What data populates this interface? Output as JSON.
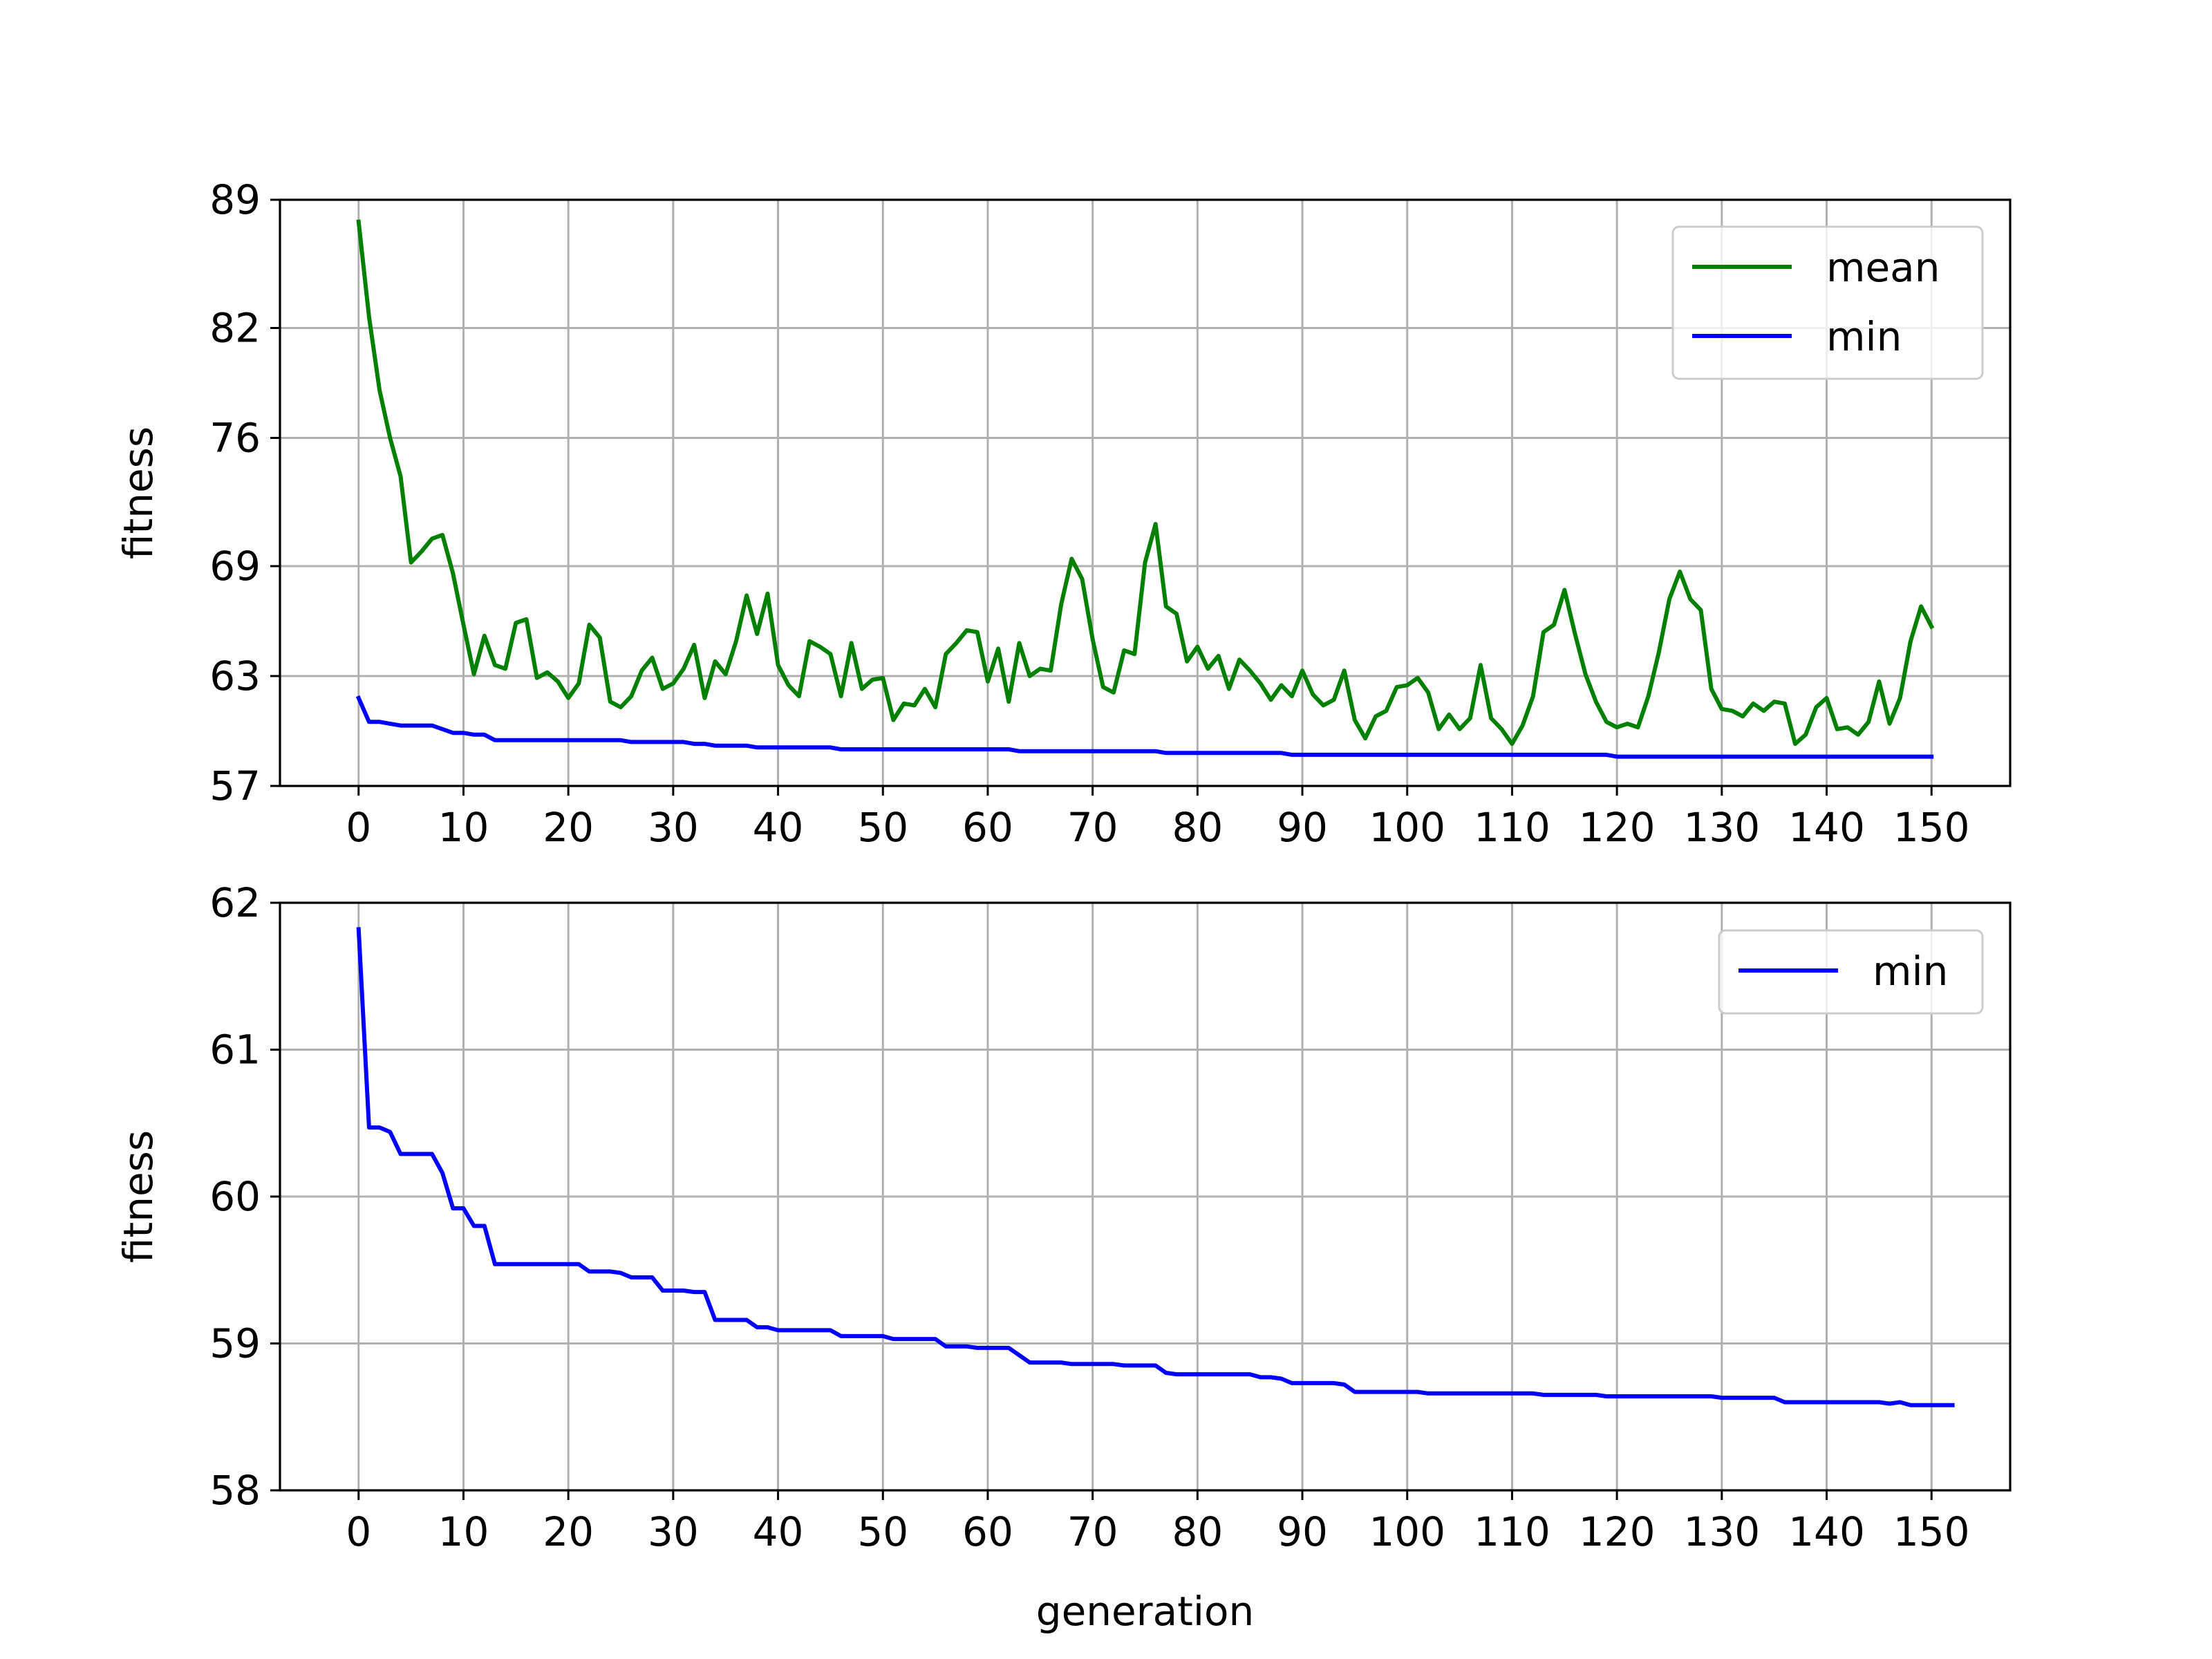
{
  "chart_data": [
    {
      "type": "line",
      "xlabel": "",
      "ylabel": "fitness",
      "xlim": [
        -7.5,
        157.5
      ],
      "ylim": [
        57,
        89
      ],
      "xticks": [
        0,
        10,
        20,
        30,
        40,
        50,
        60,
        70,
        80,
        90,
        100,
        110,
        120,
        130,
        140,
        150
      ],
      "yticks": [
        57,
        63,
        69,
        76,
        82,
        89
      ],
      "xtick_labels": [
        "0",
        "10",
        "20",
        "30",
        "40",
        "50",
        "60",
        "70",
        "80",
        "90",
        "100",
        "110",
        "120",
        "130",
        "140",
        "150"
      ],
      "ytick_labels": [
        "57",
        "63",
        "69",
        "76",
        "82",
        "89"
      ],
      "grid": true,
      "legend": "upper right",
      "series": [
        {
          "name": "mean",
          "color": "#008000",
          "values": [
            87.8,
            82.6,
            78.6,
            76.0,
            73.9,
            69.2,
            69.8,
            70.5,
            70.7,
            68.6,
            65.8,
            63.1,
            65.2,
            63.6,
            63.4,
            65.9,
            66.1,
            62.9,
            63.2,
            62.7,
            61.8,
            62.6,
            65.8,
            65.1,
            61.6,
            61.3,
            61.9,
            63.3,
            64.0,
            62.3,
            62.6,
            63.4,
            64.7,
            61.8,
            63.8,
            63.1,
            64.9,
            67.4,
            65.3,
            67.5,
            63.6,
            62.5,
            61.9,
            64.9,
            64.6,
            64.2,
            61.9,
            64.8,
            62.3,
            62.8,
            62.9,
            60.6,
            61.5,
            61.4,
            62.3,
            61.3,
            64.2,
            64.8,
            65.5,
            65.4,
            62.7,
            64.5,
            61.6,
            64.8,
            63.0,
            63.4,
            63.3,
            66.9,
            69.4,
            68.3,
            65.0,
            62.4,
            62.1,
            64.4,
            64.2,
            69.2,
            71.3,
            66.8,
            66.4,
            63.8,
            64.6,
            63.4,
            64.1,
            62.3,
            63.9,
            63.3,
            62.6,
            61.7,
            62.5,
            61.9,
            63.3,
            62.0,
            61.4,
            61.7,
            63.3,
            60.6,
            59.6,
            60.8,
            61.1,
            62.4,
            62.5,
            62.9,
            62.1,
            60.1,
            60.9,
            60.1,
            60.7,
            63.6,
            60.7,
            60.1,
            59.3,
            60.3,
            61.9,
            65.4,
            65.8,
            67.7,
            65.3,
            63.1,
            61.6,
            60.5,
            60.2,
            60.4,
            60.2,
            61.9,
            64.3,
            67.2,
            68.7,
            67.2,
            66.6,
            62.3,
            61.2,
            61.1,
            60.8,
            61.5,
            61.1,
            61.6,
            61.5,
            59.3,
            59.8,
            61.3,
            61.8,
            60.1,
            60.2,
            59.8,
            60.5,
            62.7,
            60.4,
            61.8,
            64.9,
            66.8,
            65.7
          ]
        },
        {
          "name": "min",
          "color": "#0000ff",
          "values": [
            61.8,
            60.5,
            60.5,
            60.4,
            60.3,
            60.3,
            60.3,
            60.3,
            60.1,
            59.9,
            59.9,
            59.8,
            59.8,
            59.5,
            59.5,
            59.5,
            59.5,
            59.5,
            59.5,
            59.5,
            59.5,
            59.5,
            59.5,
            59.5,
            59.5,
            59.5,
            59.4,
            59.4,
            59.4,
            59.4,
            59.4,
            59.4,
            59.3,
            59.3,
            59.2,
            59.2,
            59.2,
            59.2,
            59.1,
            59.1,
            59.1,
            59.1,
            59.1,
            59.1,
            59.1,
            59.1,
            59.0,
            59.0,
            59.0,
            59.0,
            59.0,
            59.0,
            59.0,
            59.0,
            59.0,
            59.0,
            59.0,
            59.0,
            59.0,
            59.0,
            59.0,
            59.0,
            59.0,
            58.9,
            58.9,
            58.9,
            58.9,
            58.9,
            58.9,
            58.9,
            58.9,
            58.9,
            58.9,
            58.9,
            58.9,
            58.9,
            58.9,
            58.8,
            58.8,
            58.8,
            58.8,
            58.8,
            58.8,
            58.8,
            58.8,
            58.8,
            58.8,
            58.8,
            58.8,
            58.7,
            58.7,
            58.7,
            58.7,
            58.7,
            58.7,
            58.7,
            58.7,
            58.7,
            58.7,
            58.7,
            58.7,
            58.7,
            58.7,
            58.7,
            58.7,
            58.7,
            58.7,
            58.7,
            58.7,
            58.7,
            58.7,
            58.7,
            58.7,
            58.7,
            58.7,
            58.7,
            58.7,
            58.7,
            58.7,
            58.7,
            58.6,
            58.6,
            58.6,
            58.6,
            58.6,
            58.6,
            58.6,
            58.6,
            58.6,
            58.6,
            58.6,
            58.6,
            58.6,
            58.6,
            58.6,
            58.6,
            58.6,
            58.6,
            58.6,
            58.6,
            58.6,
            58.6,
            58.6,
            58.6,
            58.6,
            58.6,
            58.6,
            58.6,
            58.6,
            58.6,
            58.6
          ]
        }
      ]
    },
    {
      "type": "line",
      "xlabel": "generation",
      "ylabel": "fitness",
      "xlim": [
        -7.5,
        157.5
      ],
      "ylim": [
        58,
        62
      ],
      "xticks": [
        0,
        10,
        20,
        30,
        40,
        50,
        60,
        70,
        80,
        90,
        100,
        110,
        120,
        130,
        140,
        150
      ],
      "yticks": [
        58,
        59,
        60,
        61,
        62
      ],
      "xtick_labels": [
        "0",
        "10",
        "20",
        "30",
        "40",
        "50",
        "60",
        "70",
        "80",
        "90",
        "100",
        "110",
        "120",
        "130",
        "140",
        "150"
      ],
      "ytick_labels": [
        "58",
        "59",
        "60",
        "61",
        "62"
      ],
      "grid": true,
      "legend": "upper right",
      "series": [
        {
          "name": "min",
          "color": "#0000ff",
          "values": [
            61.82,
            60.47,
            60.47,
            60.44,
            60.29,
            60.29,
            60.29,
            60.29,
            60.16,
            59.92,
            59.92,
            59.8,
            59.8,
            59.54,
            59.54,
            59.54,
            59.54,
            59.54,
            59.54,
            59.54,
            59.54,
            59.54,
            59.49,
            59.49,
            59.49,
            59.48,
            59.45,
            59.45,
            59.45,
            59.36,
            59.36,
            59.36,
            59.35,
            59.35,
            59.16,
            59.16,
            59.16,
            59.16,
            59.11,
            59.11,
            59.09,
            59.09,
            59.09,
            59.09,
            59.09,
            59.09,
            59.05,
            59.05,
            59.05,
            59.05,
            59.05,
            59.03,
            59.03,
            59.03,
            59.03,
            59.03,
            58.98,
            58.98,
            58.98,
            58.97,
            58.97,
            58.97,
            58.97,
            58.92,
            58.87,
            58.87,
            58.87,
            58.87,
            58.86,
            58.86,
            58.86,
            58.86,
            58.86,
            58.85,
            58.85,
            58.85,
            58.85,
            58.8,
            58.79,
            58.79,
            58.79,
            58.79,
            58.79,
            58.79,
            58.79,
            58.79,
            58.77,
            58.77,
            58.76,
            58.73,
            58.73,
            58.73,
            58.73,
            58.73,
            58.72,
            58.67,
            58.67,
            58.67,
            58.67,
            58.67,
            58.67,
            58.67,
            58.66,
            58.66,
            58.66,
            58.66,
            58.66,
            58.66,
            58.66,
            58.66,
            58.66,
            58.66,
            58.66,
            58.65,
            58.65,
            58.65,
            58.65,
            58.65,
            58.65,
            58.64,
            58.64,
            58.64,
            58.64,
            58.64,
            58.64,
            58.64,
            58.64,
            58.64,
            58.64,
            58.64,
            58.63,
            58.63,
            58.63,
            58.63,
            58.63,
            58.63,
            58.6,
            58.6,
            58.6,
            58.6,
            58.6,
            58.6,
            58.6,
            58.6,
            58.6,
            58.6,
            58.59,
            58.6,
            58.58,
            58.58,
            58.58,
            58.58,
            58.58
          ]
        }
      ]
    }
  ]
}
